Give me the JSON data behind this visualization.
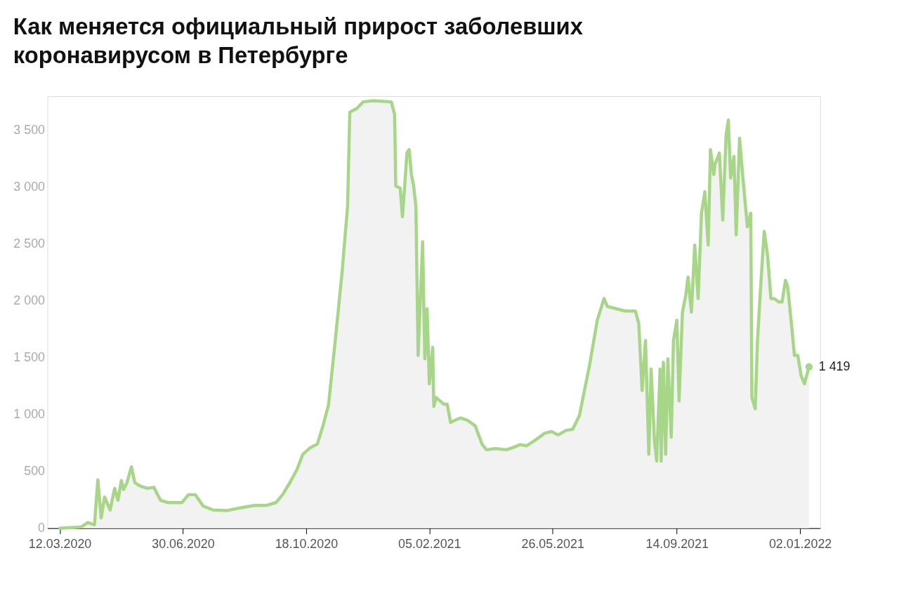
{
  "chart_data": {
    "type": "area",
    "title": "Как меняется официальный прирост заболевших коронавирусом в Петербурге",
    "x": [
      "2020-03-12",
      "2020-03-31",
      "2020-04-06",
      "2020-04-12",
      "2020-04-15",
      "2020-04-18",
      "2020-04-21",
      "2020-04-26",
      "2020-04-30",
      "2020-05-03",
      "2020-05-06",
      "2020-05-08",
      "2020-05-11",
      "2020-05-15",
      "2020-05-18",
      "2020-05-23",
      "2020-05-29",
      "2020-06-04",
      "2020-06-10",
      "2020-06-17",
      "2020-06-23",
      "2020-06-29",
      "2020-07-05",
      "2020-07-11",
      "2020-07-18",
      "2020-07-27",
      "2020-08-08",
      "2020-08-21",
      "2020-09-02",
      "2020-09-12",
      "2020-09-21",
      "2020-09-27",
      "2020-10-04",
      "2020-10-10",
      "2020-10-15",
      "2020-10-22",
      "2020-10-28",
      "2020-11-02",
      "2020-11-07",
      "2020-11-13",
      "2020-11-19",
      "2020-11-24",
      "2020-11-26",
      "2020-12-02",
      "2020-12-08",
      "2020-12-17",
      "2021-01-02",
      "2021-01-05",
      "2021-01-06",
      "2021-01-10",
      "2021-01-12",
      "2021-01-14",
      "2021-01-16",
      "2021-01-18",
      "2021-01-20",
      "2021-01-22",
      "2021-01-24",
      "2021-01-26",
      "2021-01-30",
      "2021-02-01",
      "2021-02-03",
      "2021-02-05",
      "2021-02-08",
      "2021-02-09",
      "2021-02-11",
      "2021-02-18",
      "2021-02-21",
      "2021-02-24",
      "2021-02-28",
      "2021-03-05",
      "2021-03-11",
      "2021-03-18",
      "2021-03-24",
      "2021-03-28",
      "2021-04-05",
      "2021-04-15",
      "2021-04-21",
      "2021-04-27",
      "2021-05-03",
      "2021-05-10",
      "2021-05-19",
      "2021-05-25",
      "2021-05-31",
      "2021-06-07",
      "2021-06-13",
      "2021-06-19",
      "2021-06-28",
      "2021-07-05",
      "2021-07-11",
      "2021-07-14",
      "2021-07-30",
      "2021-08-08",
      "2021-08-11",
      "2021-08-14",
      "2021-08-17",
      "2021-08-20",
      "2021-08-22",
      "2021-08-25",
      "2021-08-27",
      "2021-08-30",
      "2021-08-31",
      "2021-09-02",
      "2021-09-04",
      "2021-09-06",
      "2021-09-09",
      "2021-09-11",
      "2021-09-14",
      "2021-09-16",
      "2021-09-19",
      "2021-09-22",
      "2021-09-24",
      "2021-09-27",
      "2021-09-30",
      "2021-10-03",
      "2021-10-06",
      "2021-10-09",
      "2021-10-12",
      "2021-10-14",
      "2021-10-17",
      "2021-10-18",
      "2021-10-22",
      "2021-10-25",
      "2021-10-28",
      "2021-10-30",
      "2021-11-01",
      "2021-11-04",
      "2021-11-06",
      "2021-11-09",
      "2021-11-12",
      "2021-11-16",
      "2021-11-19",
      "2021-11-20",
      "2021-11-23",
      "2021-11-25",
      "2021-11-28",
      "2021-12-01",
      "2021-12-04",
      "2021-12-07",
      "2021-12-10",
      "2021-12-14",
      "2021-12-17",
      "2021-12-20",
      "2021-12-22",
      "2021-12-25",
      "2021-12-28",
      "2021-12-31",
      "2022-01-03",
      "2022-01-06",
      "2022-01-07",
      "2022-01-10"
    ],
    "series": [
      {
        "color": "#a8d688",
        "values": [
          0,
          10,
          50,
          30,
          425,
          90,
          275,
          160,
          350,
          245,
          420,
          340,
          400,
          540,
          400,
          370,
          350,
          360,
          245,
          225,
          225,
          225,
          295,
          295,
          195,
          160,
          155,
          180,
          200,
          200,
          225,
          295,
          410,
          520,
          650,
          710,
          740,
          900,
          1085,
          1650,
          2240,
          2830,
          3660,
          3690,
          3750,
          3760,
          3750,
          3640,
          3010,
          2990,
          2740,
          3010,
          3300,
          3330,
          3110,
          3010,
          2830,
          1520,
          2520,
          1490,
          1930,
          1270,
          1590,
          1070,
          1150,
          1090,
          1090,
          930,
          950,
          970,
          950,
          900,
          740,
          690,
          700,
          690,
          710,
          735,
          725,
          770,
          835,
          850,
          820,
          860,
          870,
          990,
          1430,
          1830,
          2020,
          1950,
          1910,
          1910,
          1800,
          1210,
          1650,
          650,
          1400,
          770,
          590,
          1400,
          590,
          1460,
          650,
          1490,
          800,
          1650,
          1830,
          1120,
          1900,
          2050,
          2210,
          1900,
          2490,
          2020,
          2770,
          2960,
          2490,
          3330,
          3110,
          3200,
          3300,
          2710,
          3460,
          3590,
          3080,
          3270,
          2580,
          3430,
          3080,
          2650,
          2770,
          1150,
          1050,
          1650,
          2150,
          2610,
          2400,
          2020,
          2020,
          1990,
          1990,
          2180,
          2120,
          1830,
          1520,
          1520,
          1340,
          1270,
          1310,
          1419
        ]
      }
    ],
    "xlim": [
      "2020-03-01",
      "2022-01-20"
    ],
    "xticks": [
      {
        "value": "2020-03-12",
        "label": "12.03.2020"
      },
      {
        "value": "2020-06-30",
        "label": "30.06.2020"
      },
      {
        "value": "2020-10-18",
        "label": "18.10.2020"
      },
      {
        "value": "2021-02-05",
        "label": "05.02.2021"
      },
      {
        "value": "2021-05-26",
        "label": "26.05.2021"
      },
      {
        "value": "2021-09-14",
        "label": "14.09.2021"
      },
      {
        "value": "2022-01-02",
        "label": "02.01.2022"
      }
    ],
    "ylim": [
      0,
      3800
    ],
    "yticks": [
      {
        "value": 0,
        "label": "0"
      },
      {
        "value": 500,
        "label": "500"
      },
      {
        "value": 1000,
        "label": "1 000"
      },
      {
        "value": 1500,
        "label": "1 500"
      },
      {
        "value": 2000,
        "label": "2 000"
      },
      {
        "value": 2500,
        "label": "2 500"
      },
      {
        "value": 3000,
        "label": "3 000"
      },
      {
        "value": 3500,
        "label": "3 500"
      }
    ],
    "annotations": [
      {
        "text": "1 419",
        "x": "2022-01-10",
        "y": 1419
      }
    ],
    "grid": false,
    "marker": "none",
    "line_style": "solid"
  }
}
